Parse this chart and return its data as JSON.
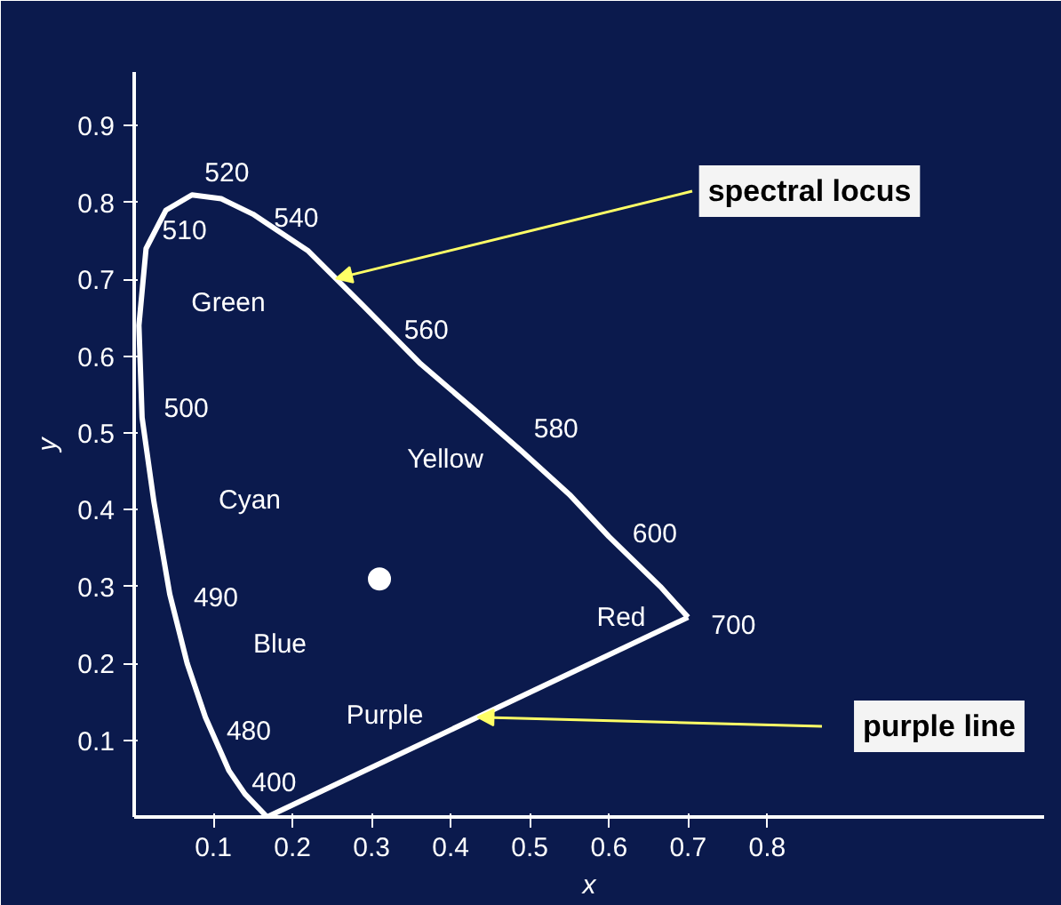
{
  "chart_data": {
    "type": "line",
    "xlabel": "x",
    "ylabel": "y",
    "xlim": [
      0,
      1.15
    ],
    "ylim": [
      0,
      0.97
    ],
    "xticks": [
      0.1,
      0.2,
      0.3,
      0.4,
      0.5,
      0.6,
      0.7,
      0.8
    ],
    "yticks": [
      0.1,
      0.2,
      0.3,
      0.4,
      0.5,
      0.6,
      0.7,
      0.8,
      0.9
    ],
    "grid": false,
    "legend": false,
    "marker": "none",
    "line_style": "solid",
    "series": [
      {
        "name": "spectral locus",
        "color": "#ffffff",
        "x": [
          0.168,
          0.14,
          0.12,
          0.09,
          0.067,
          0.045,
          0.025,
          0.01,
          0.006,
          0.015,
          0.04,
          0.073,
          0.11,
          0.15,
          0.22,
          0.29,
          0.362,
          0.43,
          0.49,
          0.55,
          0.6,
          0.665,
          0.7
        ],
        "values": [
          0.0,
          0.03,
          0.06,
          0.13,
          0.2,
          0.29,
          0.41,
          0.52,
          0.64,
          0.74,
          0.79,
          0.81,
          0.805,
          0.785,
          0.737,
          0.665,
          0.59,
          0.53,
          0.476,
          0.42,
          0.365,
          0.3,
          0.26
        ]
      },
      {
        "name": "purple line",
        "color": "#ffffff",
        "x": [
          0.7,
          0.168
        ],
        "values": [
          0.26,
          0.0
        ]
      },
      {
        "type": "scatter",
        "color": "#ffffff",
        "marker": "circle",
        "x": [
          0.31
        ],
        "values": [
          0.31
        ]
      }
    ],
    "annotations": [
      {
        "text": "400",
        "x": 0.168,
        "y": 0.0
      },
      {
        "text": "480",
        "x": 0.09,
        "y": 0.13
      },
      {
        "text": "490",
        "x": 0.045,
        "y": 0.29
      },
      {
        "text": "500",
        "x": 0.01,
        "y": 0.52
      },
      {
        "text": "510",
        "x": 0.015,
        "y": 0.74
      },
      {
        "text": "520",
        "x": 0.073,
        "y": 0.81
      },
      {
        "text": "540",
        "x": 0.22,
        "y": 0.737
      },
      {
        "text": "560",
        "x": 0.362,
        "y": 0.59
      },
      {
        "text": "580",
        "x": 0.49,
        "y": 0.476
      },
      {
        "text": "600",
        "x": 0.6,
        "y": 0.365
      },
      {
        "text": "700",
        "x": 0.7,
        "y": 0.26
      },
      "Green",
      "Cyan",
      "Blue",
      "Purple",
      "Yellow",
      "Red"
    ]
  }
}
